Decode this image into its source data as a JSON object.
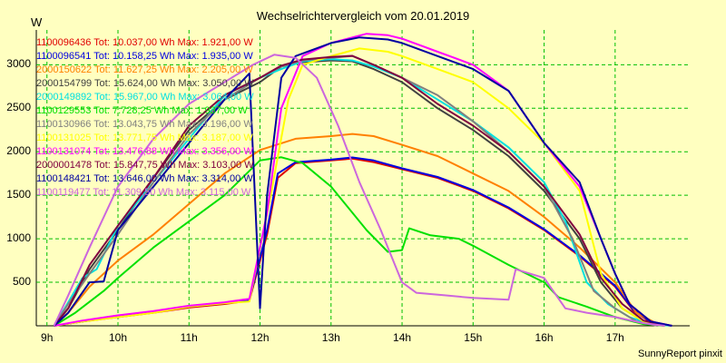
{
  "title": "Wechselrichtervergleich vom 20.01.2019",
  "unit": "W",
  "credit": "SunnyReport pinxit",
  "colors": {
    "background": "#ffffc0",
    "grid": "#00bf00"
  },
  "chart_data": {
    "type": "line",
    "title": "Wechselrichtervergleich vom 20.01.2019",
    "ylabel": "W",
    "xlabel": "",
    "xlim": [
      8.85,
      18.05
    ],
    "ylim": [
      0,
      3400
    ],
    "grid": true,
    "legend_placement": "top-left",
    "x_ticks": [
      {
        "value": 9,
        "label": "9h"
      },
      {
        "value": 10,
        "label": "10h"
      },
      {
        "value": 11,
        "label": "11h"
      },
      {
        "value": 12,
        "label": "12h"
      },
      {
        "value": 13,
        "label": "13h"
      },
      {
        "value": 14,
        "label": "14h"
      },
      {
        "value": 15,
        "label": "15h"
      },
      {
        "value": 16,
        "label": "16h"
      },
      {
        "value": 17,
        "label": "17h"
      }
    ],
    "y_ticks": [
      {
        "value": 500,
        "label": "500"
      },
      {
        "value": 1000,
        "label": "1000"
      },
      {
        "value": 1500,
        "label": "1500"
      },
      {
        "value": 2000,
        "label": "2000"
      },
      {
        "value": 2500,
        "label": "2500"
      },
      {
        "value": 3000,
        "label": "3000"
      }
    ],
    "series": [
      {
        "legend": "1100096436 Tot: 10.037,00 Wh Max: 1.921,00 W",
        "color": "#e00000",
        "points": [
          [
            9.1,
            0
          ],
          [
            9.5,
            50
          ],
          [
            10,
            100
          ],
          [
            10.5,
            150
          ],
          [
            11,
            210
          ],
          [
            11.5,
            250
          ],
          [
            11.85,
            290
          ],
          [
            12.1,
            1050
          ],
          [
            12.25,
            1700
          ],
          [
            12.5,
            1870
          ],
          [
            13,
            1900
          ],
          [
            13.3,
            1921
          ],
          [
            13.6,
            1880
          ],
          [
            14,
            1800
          ],
          [
            14.5,
            1700
          ],
          [
            15,
            1550
          ],
          [
            15.5,
            1350
          ],
          [
            16,
            1100
          ],
          [
            16.5,
            800
          ],
          [
            17,
            450
          ],
          [
            17.25,
            180
          ],
          [
            17.5,
            40
          ],
          [
            17.8,
            0
          ]
        ]
      },
      {
        "legend": "1100096541 Tot: 10.158,25 Wh Max: 1.935,00 W",
        "color": "#0000e0",
        "points": [
          [
            9.1,
            0
          ],
          [
            9.5,
            50
          ],
          [
            10,
            110
          ],
          [
            10.5,
            160
          ],
          [
            11,
            220
          ],
          [
            11.5,
            260
          ],
          [
            11.85,
            300
          ],
          [
            12.1,
            1100
          ],
          [
            12.25,
            1750
          ],
          [
            12.5,
            1880
          ],
          [
            13,
            1910
          ],
          [
            13.3,
            1935
          ],
          [
            13.6,
            1900
          ],
          [
            14,
            1810
          ],
          [
            14.5,
            1710
          ],
          [
            15,
            1560
          ],
          [
            15.5,
            1360
          ],
          [
            16,
            1110
          ],
          [
            16.5,
            810
          ],
          [
            17,
            460
          ],
          [
            17.25,
            190
          ],
          [
            17.5,
            45
          ],
          [
            17.8,
            0
          ]
        ]
      },
      {
        "legend": "2000150622 Tot: 11.627,25 Wh Max: 2.205,00 W",
        "color": "#ff8000",
        "points": [
          [
            9.1,
            0
          ],
          [
            9.3,
            150
          ],
          [
            9.6,
            450
          ],
          [
            10,
            750
          ],
          [
            10.5,
            1050
          ],
          [
            11,
            1400
          ],
          [
            11.5,
            1750
          ],
          [
            12,
            2020
          ],
          [
            12.5,
            2150
          ],
          [
            13,
            2180
          ],
          [
            13.3,
            2205
          ],
          [
            13.6,
            2180
          ],
          [
            14,
            2080
          ],
          [
            14.5,
            1950
          ],
          [
            15,
            1750
          ],
          [
            15.5,
            1550
          ],
          [
            16,
            1250
          ],
          [
            16.5,
            900
          ],
          [
            17,
            500
          ],
          [
            17.3,
            150
          ],
          [
            17.6,
            20
          ],
          [
            17.8,
            0
          ]
        ]
      },
      {
        "legend": "2000154799 Tot: 15.624,00 Wh Max: 3.050,00 W",
        "color": "#404040",
        "points": [
          [
            9.1,
            0
          ],
          [
            9.3,
            200
          ],
          [
            9.6,
            650
          ],
          [
            10,
            1100
          ],
          [
            10.5,
            1700
          ],
          [
            11,
            2250
          ],
          [
            11.5,
            2600
          ],
          [
            12,
            2800
          ],
          [
            12.3,
            2980
          ],
          [
            12.6,
            3030
          ],
          [
            13,
            3050
          ],
          [
            13.3,
            3040
          ],
          [
            13.6,
            2950
          ],
          [
            14,
            2800
          ],
          [
            14.5,
            2500
          ],
          [
            15,
            2250
          ],
          [
            15.5,
            1950
          ],
          [
            16,
            1550
          ],
          [
            16.5,
            1000
          ],
          [
            16.8,
            500
          ],
          [
            17.1,
            200
          ],
          [
            17.4,
            50
          ],
          [
            17.7,
            0
          ]
        ]
      },
      {
        "legend": "2000149892 Tot: 15.967,00 Wh Max: 3.064,00 W",
        "color": "#00e0e0",
        "points": [
          [
            9.1,
            0
          ],
          [
            9.25,
            200
          ],
          [
            9.5,
            550
          ],
          [
            9.7,
            650
          ],
          [
            10,
            1150
          ],
          [
            10.5,
            1650
          ],
          [
            11,
            2150
          ],
          [
            11.5,
            2650
          ],
          [
            12,
            2850
          ],
          [
            12.3,
            2950
          ],
          [
            12.6,
            3040
          ],
          [
            13,
            3064
          ],
          [
            13.3,
            3050
          ],
          [
            13.6,
            2980
          ],
          [
            14,
            2850
          ],
          [
            14.5,
            2600
          ],
          [
            15,
            2350
          ],
          [
            15.5,
            2050
          ],
          [
            16,
            1650
          ],
          [
            16.3,
            1200
          ],
          [
            16.6,
            500
          ],
          [
            16.9,
            250
          ],
          [
            17.2,
            100
          ],
          [
            17.5,
            20
          ],
          [
            17.8,
            0
          ]
        ]
      },
      {
        "legend": "1100129553 Tot: 7.728,25 Wh Max: 1.937,00 W",
        "color": "#00e000",
        "points": [
          [
            9.1,
            0
          ],
          [
            9.4,
            150
          ],
          [
            9.8,
            400
          ],
          [
            10,
            550
          ],
          [
            10.5,
            900
          ],
          [
            11,
            1200
          ],
          [
            11.5,
            1500
          ],
          [
            12,
            1900
          ],
          [
            12.3,
            1937
          ],
          [
            12.6,
            1870
          ],
          [
            13,
            1600
          ],
          [
            13.5,
            1100
          ],
          [
            13.8,
            850
          ],
          [
            14,
            870
          ],
          [
            14.1,
            1120
          ],
          [
            14.4,
            1040
          ],
          [
            14.8,
            1000
          ],
          [
            15,
            920
          ],
          [
            15.5,
            700
          ],
          [
            16,
            500
          ],
          [
            16.2,
            330
          ],
          [
            16.6,
            220
          ],
          [
            17,
            100
          ],
          [
            17.4,
            20
          ],
          [
            17.7,
            0
          ]
        ]
      },
      {
        "legend": "1100130966 Tot: 13.043,75 Wh Max: 3.196,00 W",
        "color": "#808080",
        "points": [
          [
            9.1,
            0
          ],
          [
            9.3,
            250
          ],
          [
            9.6,
            600
          ],
          [
            10,
            1050
          ],
          [
            10.5,
            1650
          ],
          [
            11,
            2200
          ],
          [
            11.5,
            2600
          ],
          [
            12,
            2850
          ],
          [
            12.3,
            2980
          ],
          [
            12.6,
            3050
          ],
          [
            13,
            3080
          ],
          [
            13.3,
            3100
          ],
          [
            13.6,
            3000
          ],
          [
            14,
            2850
          ],
          [
            14.5,
            2650
          ],
          [
            15,
            2350
          ],
          [
            15.5,
            2000
          ],
          [
            16,
            1600
          ],
          [
            16.4,
            1000
          ],
          [
            16.7,
            400
          ],
          [
            17,
            200
          ],
          [
            17.3,
            50
          ],
          [
            17.6,
            0
          ]
        ]
      },
      {
        "legend": "1100131025 Tot: 13.771,75 Wh Max: 3.187,00 W",
        "color": "#ffff00",
        "points": [
          [
            9.1,
            0
          ],
          [
            9.5,
            50
          ],
          [
            10,
            100
          ],
          [
            10.5,
            150
          ],
          [
            11,
            220
          ],
          [
            11.5,
            260
          ],
          [
            11.85,
            280
          ],
          [
            12.15,
            1500
          ],
          [
            12.4,
            2600
          ],
          [
            12.6,
            3000
          ],
          [
            13,
            3100
          ],
          [
            13.4,
            3187
          ],
          [
            13.8,
            3150
          ],
          [
            14,
            3100
          ],
          [
            14.5,
            2950
          ],
          [
            15,
            2800
          ],
          [
            15.5,
            2500
          ],
          [
            16,
            2100
          ],
          [
            16.5,
            1550
          ],
          [
            16.8,
            600
          ],
          [
            17.1,
            200
          ],
          [
            17.4,
            50
          ],
          [
            17.7,
            0
          ]
        ]
      },
      {
        "legend": "1100131074 Tot: 13.476,88 Wh Max: 3.356,00 W",
        "color": "#ff00ff",
        "points": [
          [
            9.1,
            0
          ],
          [
            9.5,
            60
          ],
          [
            10,
            120
          ],
          [
            10.5,
            170
          ],
          [
            11,
            230
          ],
          [
            11.5,
            270
          ],
          [
            11.85,
            310
          ],
          [
            12.1,
            1300
          ],
          [
            12.3,
            2500
          ],
          [
            12.6,
            3100
          ],
          [
            13,
            3250
          ],
          [
            13.5,
            3356
          ],
          [
            13.8,
            3340
          ],
          [
            14,
            3300
          ],
          [
            14.5,
            3150
          ],
          [
            15,
            3000
          ],
          [
            15.5,
            2700
          ],
          [
            16,
            2100
          ],
          [
            16.5,
            1600
          ],
          [
            16.8,
            1000
          ],
          [
            17,
            600
          ],
          [
            17.2,
            250
          ],
          [
            17.5,
            50
          ],
          [
            17.8,
            0
          ]
        ]
      },
      {
        "legend": "2000001478 Tot: 15.847,75 Wh Max: 3.103,00 W",
        "color": "#800040",
        "points": [
          [
            9.1,
            0
          ],
          [
            9.3,
            200
          ],
          [
            9.6,
            700
          ],
          [
            10,
            1150
          ],
          [
            10.5,
            1700
          ],
          [
            11,
            2300
          ],
          [
            11.5,
            2650
          ],
          [
            12,
            2850
          ],
          [
            12.3,
            2990
          ],
          [
            12.6,
            3060
          ],
          [
            13,
            3090
          ],
          [
            13.3,
            3103
          ],
          [
            13.6,
            3000
          ],
          [
            14,
            2850
          ],
          [
            14.5,
            2550
          ],
          [
            15,
            2300
          ],
          [
            15.5,
            2000
          ],
          [
            16,
            1600
          ],
          [
            16.5,
            1050
          ],
          [
            16.8,
            550
          ],
          [
            17.1,
            250
          ],
          [
            17.4,
            60
          ],
          [
            17.7,
            0
          ]
        ]
      },
      {
        "legend": "1100148421 Tot: 13.646,00 Wh Max: 3.314,00 W",
        "color": "#0000a0",
        "points": [
          [
            9.1,
            0
          ],
          [
            9.3,
            150
          ],
          [
            9.6,
            500
          ],
          [
            9.8,
            510
          ],
          [
            10,
            1100
          ],
          [
            10.5,
            1600
          ],
          [
            11,
            2100
          ],
          [
            11.5,
            2600
          ],
          [
            11.85,
            2900
          ],
          [
            12,
            200
          ],
          [
            12.1,
            1500
          ],
          [
            12.3,
            2850
          ],
          [
            12.5,
            3100
          ],
          [
            13,
            3250
          ],
          [
            13.4,
            3314
          ],
          [
            13.8,
            3290
          ],
          [
            14,
            3250
          ],
          [
            14.5,
            3100
          ],
          [
            15,
            2950
          ],
          [
            15.5,
            2700
          ],
          [
            16,
            2100
          ],
          [
            16.5,
            1650
          ],
          [
            16.8,
            1000
          ],
          [
            17,
            600
          ],
          [
            17.2,
            250
          ],
          [
            17.5,
            50
          ],
          [
            17.8,
            0
          ]
        ]
      },
      {
        "legend": "1100119477 Tot: 11.309,50 Wh Max: 3.115,00 W",
        "color": "#cc66dd",
        "points": [
          [
            9.1,
            0
          ],
          [
            9.3,
            350
          ],
          [
            9.6,
            900
          ],
          [
            10,
            1600
          ],
          [
            10.5,
            2150
          ],
          [
            11,
            2550
          ],
          [
            11.5,
            2800
          ],
          [
            11.9,
            3000
          ],
          [
            12.2,
            3115
          ],
          [
            12.5,
            3080
          ],
          [
            12.8,
            2850
          ],
          [
            13.1,
            2300
          ],
          [
            13.4,
            1650
          ],
          [
            13.7,
            1100
          ],
          [
            14,
            500
          ],
          [
            14.2,
            380
          ],
          [
            14.6,
            350
          ],
          [
            15,
            320
          ],
          [
            15.5,
            300
          ],
          [
            15.6,
            650
          ],
          [
            16,
            550
          ],
          [
            16.3,
            200
          ],
          [
            16.6,
            150
          ],
          [
            17,
            100
          ],
          [
            17.4,
            30
          ],
          [
            17.7,
            0
          ]
        ]
      }
    ]
  }
}
